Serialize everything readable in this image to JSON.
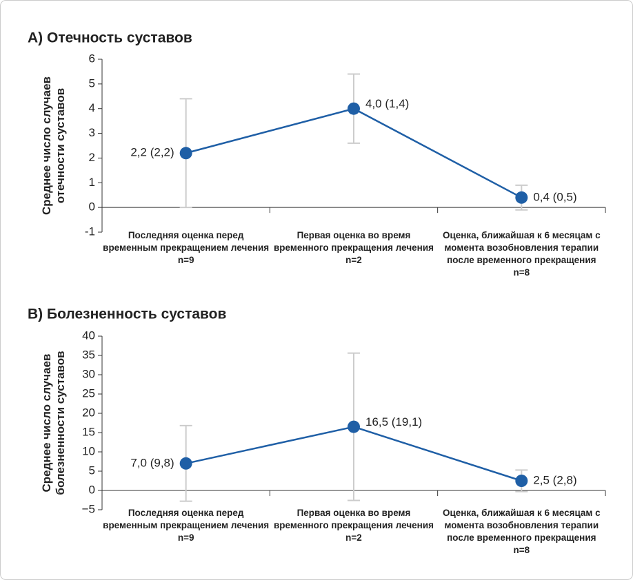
{
  "chart_data": [
    {
      "type": "line",
      "title": "A) Отечность суставов",
      "y_label": "Среднее число случаев отечности суставов",
      "categories": [
        "Последняя оценка перед временным прекращением лечения n=9",
        "Первая оценка во время временного прекращения лечения n=2",
        "Оценка, ближайшая к 6 месяцам с момента возобновления терапии после временного прекращения n=8"
      ],
      "series": [
        {
          "color": "#1f5fa6",
          "values": [
            2.2,
            4.0,
            0.4
          ],
          "errors": [
            2.2,
            1.4,
            0.5
          ],
          "value_labels": [
            "2,2 (2,2)",
            "4,0 (1,4)",
            "0,4 (0,5)"
          ]
        }
      ],
      "ylim": [
        -1,
        6
      ],
      "yticks": [
        -1,
        0,
        1,
        2,
        3,
        4,
        5,
        6
      ],
      "error_color": "#cccccc"
    },
    {
      "type": "line",
      "title": "B) Болезненность суставов",
      "y_label": "Среднее число случаев болезненности суставов",
      "categories": [
        "Последняя оценка перед временным прекращением лечения n=9",
        "Первая оценка во время временного прекращения лечения n=2",
        "Оценка, ближайшая к 6 месяцам с момента возобновления терапии после временного прекращения n=8"
      ],
      "series": [
        {
          "color": "#1f5fa6",
          "values": [
            7.0,
            16.5,
            2.5
          ],
          "errors": [
            9.8,
            19.1,
            2.8
          ],
          "value_labels": [
            "7,0 (9,8)",
            "16,5 (19,1)",
            "2,5 (2,8)"
          ]
        }
      ],
      "ylim": [
        -5,
        40
      ],
      "yticks": [
        {
          "value": -5,
          "label": "−5"
        },
        0,
        5,
        10,
        15,
        20,
        25,
        30,
        35,
        40
      ],
      "error_color": "#cccccc"
    }
  ]
}
